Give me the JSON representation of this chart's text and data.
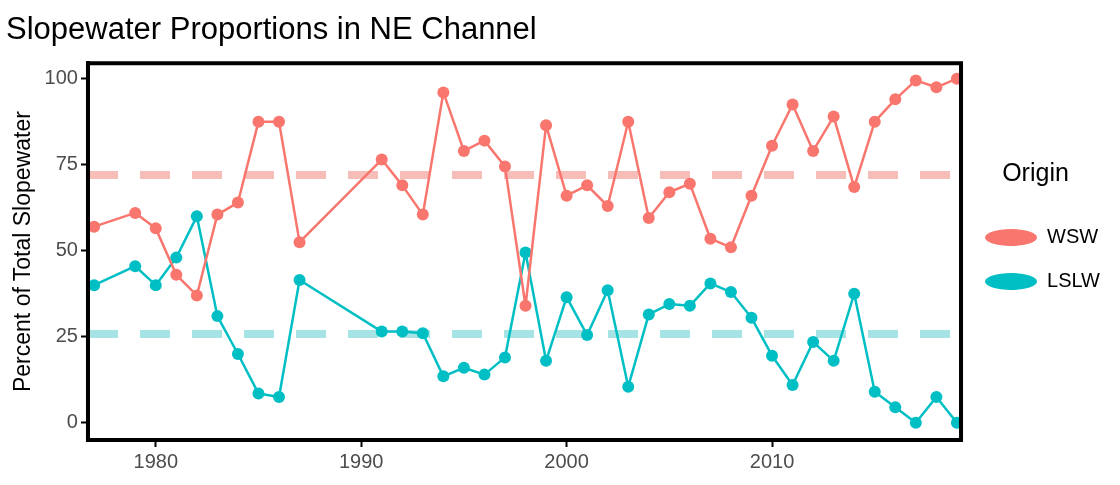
{
  "chart_data": {
    "type": "line",
    "title": "Slopewater Proportions in NE Channel",
    "xlabel": null,
    "ylabel": "Percent of Total Slopewater",
    "legend_title": "Origin",
    "x": [
      1977,
      1979,
      1980,
      1981,
      1982,
      1983,
      1984,
      1985,
      1986,
      1987,
      1991,
      1992,
      1993,
      1994,
      1995,
      1996,
      1997,
      1998,
      1999,
      2000,
      2001,
      2002,
      2003,
      2004,
      2005,
      2006,
      2007,
      2008,
      2009,
      2010,
      2011,
      2012,
      2013,
      2014,
      2015,
      2016,
      2017,
      2018,
      2019
    ],
    "series": [
      {
        "name": "WSW",
        "color": "#f8766d",
        "values": [
          57,
          61,
          56.5,
          43,
          37,
          60.5,
          64,
          87.5,
          87.5,
          52.5,
          76.5,
          69,
          60.5,
          96,
          79,
          82,
          74.5,
          34,
          86.5,
          66,
          69,
          63,
          87.5,
          59.5,
          67,
          69.5,
          53.5,
          51,
          66,
          80.5,
          92.5,
          79,
          89,
          68.5,
          87.5,
          94,
          99.5,
          97.5,
          100
        ]
      },
      {
        "name": "LSLW",
        "color": "#00bfc4",
        "values": [
          40,
          45.5,
          40,
          48,
          60,
          31,
          20,
          8.5,
          7.5,
          41.5,
          26.5,
          26.5,
          26,
          13.5,
          16,
          14,
          19,
          49.5,
          18,
          36.5,
          25.5,
          38.5,
          10.5,
          31.5,
          34.5,
          34,
          40.5,
          38,
          30.5,
          19.5,
          11,
          23.5,
          18,
          37.5,
          9,
          4.5,
          0,
          7.5,
          0
        ]
      }
    ],
    "xlim": [
      1976.7,
      2019.2
    ],
    "ylim": [
      -5,
      104.5
    ],
    "xticks": [
      1980,
      1990,
      2000,
      2010
    ],
    "yticks": [
      0,
      25,
      50,
      75,
      100
    ],
    "ref_lines": [
      {
        "axis": "y",
        "value": 72,
        "color": "#f6bdb9",
        "line_style": "dashed"
      },
      {
        "axis": "y",
        "value": 25.8,
        "color": "#a6e3e4",
        "line_style": "dashed"
      }
    ],
    "legend": "right",
    "marker": "circle",
    "line_style": "solid"
  }
}
